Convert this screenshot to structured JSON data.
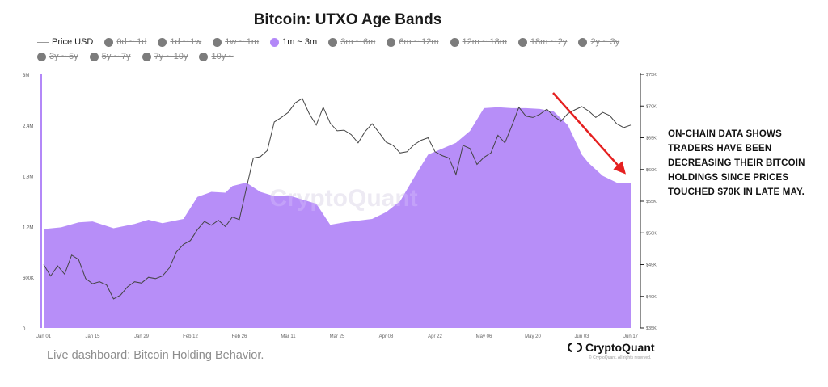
{
  "chart_data": {
    "type": "area",
    "title": "Bitcoin: UTXO Age Bands",
    "legend": [
      {
        "label": "Price USD",
        "kind": "line",
        "active": true
      },
      {
        "label": "0d ~ 1d",
        "kind": "dot",
        "active": false
      },
      {
        "label": "1d ~ 1w",
        "kind": "dot",
        "active": false
      },
      {
        "label": "1w ~ 1m",
        "kind": "dot",
        "active": false
      },
      {
        "label": "1m ~ 3m",
        "kind": "dot",
        "active": true,
        "color": "#b388f8"
      },
      {
        "label": "3m ~ 6m",
        "kind": "dot",
        "active": false
      },
      {
        "label": "6m ~ 12m",
        "kind": "dot",
        "active": false
      },
      {
        "label": "12m ~ 18m",
        "kind": "dot",
        "active": false
      },
      {
        "label": "18m ~ 2y",
        "kind": "dot",
        "active": false
      },
      {
        "label": "2y ~ 3y",
        "kind": "dot",
        "active": false
      },
      {
        "label": "3y ~ 5y",
        "kind": "dot",
        "active": false
      },
      {
        "label": "5y ~ 7y",
        "kind": "dot",
        "active": false
      },
      {
        "label": "7y ~ 10y",
        "kind": "dot",
        "active": false
      },
      {
        "label": "10y ~",
        "kind": "dot",
        "active": false
      }
    ],
    "x_ticks": [
      "Jan 01",
      "Jan 15",
      "Jan 29",
      "Feb 12",
      "Feb 26",
      "Mar 11",
      "Mar 25",
      "Apr 08",
      "Apr 22",
      "May 06",
      "May 20",
      "Jun 03",
      "Jun 17"
    ],
    "y_left": {
      "ticks": [
        "0",
        "600K",
        "1.2M",
        "1.8M",
        "2.4M",
        "3M"
      ],
      "range": [
        0,
        3000000
      ]
    },
    "y_right": {
      "ticks": [
        "$35K",
        "$40K",
        "$45K",
        "$50K",
        "$55K",
        "$60K",
        "$65K",
        "$70K",
        "$75K"
      ],
      "range": [
        35000,
        75000
      ]
    },
    "x_range": [
      0,
      168
    ],
    "series": [
      {
        "name": "1m ~ 3m",
        "type": "area",
        "color": "#b388f8",
        "axis": "left",
        "x": [
          0,
          5,
          10,
          14,
          20,
          26,
          30,
          34,
          40,
          44,
          48,
          52,
          54,
          58,
          62,
          66,
          70,
          74,
          78,
          82,
          86,
          90,
          94,
          98,
          102,
          106,
          110,
          114,
          118,
          122,
          126,
          130,
          134,
          138,
          142,
          146,
          150,
          154,
          156,
          160,
          164,
          168
        ],
        "values": [
          1170000,
          1190000,
          1250000,
          1260000,
          1180000,
          1230000,
          1280000,
          1240000,
          1290000,
          1550000,
          1610000,
          1600000,
          1680000,
          1720000,
          1610000,
          1560000,
          1570000,
          1520000,
          1470000,
          1220000,
          1250000,
          1270000,
          1290000,
          1370000,
          1500000,
          1780000,
          2050000,
          2120000,
          2190000,
          2330000,
          2600000,
          2610000,
          2600000,
          2600000,
          2590000,
          2560000,
          2400000,
          2050000,
          1950000,
          1800000,
          1720000,
          1720000
        ]
      },
      {
        "name": "Price USD",
        "type": "line",
        "color": "#444444",
        "axis": "right",
        "x": [
          0,
          2,
          4,
          6,
          8,
          10,
          12,
          14,
          16,
          18,
          20,
          22,
          24,
          26,
          28,
          30,
          32,
          34,
          36,
          38,
          40,
          42,
          44,
          46,
          48,
          50,
          52,
          54,
          56,
          58,
          60,
          62,
          64,
          66,
          68,
          70,
          72,
          74,
          76,
          78,
          80,
          82,
          84,
          86,
          88,
          90,
          92,
          94,
          96,
          98,
          100,
          102,
          104,
          106,
          108,
          110,
          112,
          114,
          116,
          118,
          120,
          122,
          124,
          126,
          128,
          130,
          132,
          134,
          136,
          138,
          140,
          142,
          144,
          146,
          148,
          150,
          152,
          154,
          156,
          158,
          160,
          162,
          164,
          166,
          168
        ],
        "values": [
          45000,
          43200,
          44800,
          43500,
          46500,
          45800,
          42800,
          42000,
          42300,
          41800,
          39600,
          40200,
          41500,
          42300,
          42100,
          43000,
          42800,
          43200,
          44500,
          47000,
          48200,
          48800,
          50500,
          51800,
          51200,
          52000,
          51000,
          52500,
          52100,
          57000,
          61800,
          62000,
          63000,
          67500,
          68200,
          69000,
          70500,
          71200,
          68800,
          67000,
          69800,
          67300,
          66100,
          66200,
          65500,
          64200,
          66000,
          67200,
          65800,
          64300,
          63800,
          62600,
          62800,
          63900,
          64600,
          65000,
          62800,
          62200,
          61800,
          59200,
          63800,
          63300,
          60800,
          61900,
          62600,
          65400,
          64200,
          66900,
          69800,
          68400,
          68200,
          68700,
          69500,
          68400,
          67600,
          68800,
          69400,
          69900,
          69200,
          68200,
          69000,
          68500,
          67200,
          66600,
          67000
        ]
      }
    ],
    "watermark": "CryptoQuant"
  },
  "annotation": "On-chain data shows traders have been decreasing their bitcoin holdings since prices touched $70K in late May.",
  "footer_link": "Live dashboard: Bitcoin Holding Behavior.",
  "brand": {
    "name": "CryptoQuant",
    "sub": "© CryptoQuant. All rights reserved."
  },
  "colors": {
    "area": "#b388f8",
    "arrow": "#e52020",
    "price_line": "#444444"
  }
}
